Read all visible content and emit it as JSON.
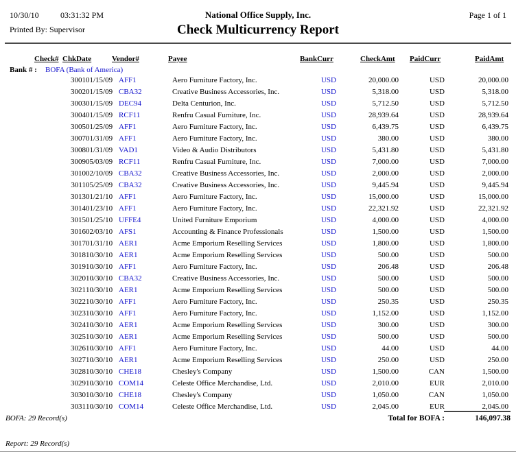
{
  "page_header": {
    "date": "10/30/10",
    "time": "03:31:32 PM",
    "company": "National Office Supply, Inc.",
    "page": "Page 1 of 1",
    "printed_by": "Printed By: Supervisor",
    "report_title": "Check Multicurrency Report"
  },
  "table": {
    "columns": [
      "Check#",
      "ChkDate",
      "Vendor#",
      "Payee",
      "BankCurr",
      "CheckAmt",
      "PaidCurr",
      "PaidAmt"
    ],
    "bank_label": "Bank # :",
    "bank_value": "BOFA (Bank of America)",
    "rows": [
      {
        "check_no": "3001",
        "chk_date": "01/15/09",
        "vendor": "AFF1",
        "payee": "Aero Furniture Factory, Inc.",
        "bank_curr": "USD",
        "check_amt": "20,000.00",
        "paid_curr": "USD",
        "paid_amt": "20,000.00"
      },
      {
        "check_no": "3002",
        "chk_date": "01/15/09",
        "vendor": "CBA32",
        "payee": "Creative Business Accessories, Inc.",
        "bank_curr": "USD",
        "check_amt": "5,318.00",
        "paid_curr": "USD",
        "paid_amt": "5,318.00"
      },
      {
        "check_no": "3003",
        "chk_date": "01/15/09",
        "vendor": "DEC94",
        "payee": "Delta Centurion, Inc.",
        "bank_curr": "USD",
        "check_amt": "5,712.50",
        "paid_curr": "USD",
        "paid_amt": "5,712.50"
      },
      {
        "check_no": "3004",
        "chk_date": "01/15/09",
        "vendor": "RCF11",
        "payee": "Renfru Casual Furniture, Inc.",
        "bank_curr": "USD",
        "check_amt": "28,939.64",
        "paid_curr": "USD",
        "paid_amt": "28,939.64"
      },
      {
        "check_no": "3005",
        "chk_date": "01/25/09",
        "vendor": "AFF1",
        "payee": "Aero Furniture Factory, Inc.",
        "bank_curr": "USD",
        "check_amt": "6,439.75",
        "paid_curr": "USD",
        "paid_amt": "6,439.75"
      },
      {
        "check_no": "3007",
        "chk_date": "01/31/09",
        "vendor": "AFF1",
        "payee": "Aero Furniture Factory, Inc.",
        "bank_curr": "USD",
        "check_amt": "380.00",
        "paid_curr": "USD",
        "paid_amt": "380.00"
      },
      {
        "check_no": "3008",
        "chk_date": "01/31/09",
        "vendor": "VAD1",
        "payee": "Video & Audio Distributors",
        "bank_curr": "USD",
        "check_amt": "5,431.80",
        "paid_curr": "USD",
        "paid_amt": "5,431.80"
      },
      {
        "check_no": "3009",
        "chk_date": "05/03/09",
        "vendor": "RCF11",
        "payee": "Renfru Casual Furniture, Inc.",
        "bank_curr": "USD",
        "check_amt": "7,000.00",
        "paid_curr": "USD",
        "paid_amt": "7,000.00"
      },
      {
        "check_no": "3010",
        "chk_date": "02/10/09",
        "vendor": "CBA32",
        "payee": "Creative Business Accessories, Inc.",
        "bank_curr": "USD",
        "check_amt": "2,000.00",
        "paid_curr": "USD",
        "paid_amt": "2,000.00"
      },
      {
        "check_no": "3011",
        "chk_date": "05/25/09",
        "vendor": "CBA32",
        "payee": "Creative Business Accessories, Inc.",
        "bank_curr": "USD",
        "check_amt": "9,445.94",
        "paid_curr": "USD",
        "paid_amt": "9,445.94"
      },
      {
        "check_no": "3013",
        "chk_date": "01/21/10",
        "vendor": "AFF1",
        "payee": "Aero Furniture Factory, Inc.",
        "bank_curr": "USD",
        "check_amt": "15,000.00",
        "paid_curr": "USD",
        "paid_amt": "15,000.00"
      },
      {
        "check_no": "3014",
        "chk_date": "01/23/10",
        "vendor": "AFF1",
        "payee": "Aero Furniture Factory, Inc.",
        "bank_curr": "USD",
        "check_amt": "22,321.92",
        "paid_curr": "USD",
        "paid_amt": "22,321.92"
      },
      {
        "check_no": "3015",
        "chk_date": "01/25/10",
        "vendor": "UFFE4",
        "payee": "United Furniture Emporium",
        "bank_curr": "USD",
        "check_amt": "4,000.00",
        "paid_curr": "USD",
        "paid_amt": "4,000.00"
      },
      {
        "check_no": "3016",
        "chk_date": "02/03/10",
        "vendor": "AFS1",
        "payee": "Accounting & Finance Professionals",
        "bank_curr": "USD",
        "check_amt": "1,500.00",
        "paid_curr": "USD",
        "paid_amt": "1,500.00"
      },
      {
        "check_no": "3017",
        "chk_date": "01/31/10",
        "vendor": "AER1",
        "payee": "Acme Emporium Reselling Services",
        "bank_curr": "USD",
        "check_amt": "1,800.00",
        "paid_curr": "USD",
        "paid_amt": "1,800.00"
      },
      {
        "check_no": "3018",
        "chk_date": "10/30/10",
        "vendor": "AER1",
        "payee": "Acme Emporium Reselling Services",
        "bank_curr": "USD",
        "check_amt": "500.00",
        "paid_curr": "USD",
        "paid_amt": "500.00"
      },
      {
        "check_no": "3019",
        "chk_date": "10/30/10",
        "vendor": "AFF1",
        "payee": "Aero Furniture Factory, Inc.",
        "bank_curr": "USD",
        "check_amt": "206.48",
        "paid_curr": "USD",
        "paid_amt": "206.48"
      },
      {
        "check_no": "3020",
        "chk_date": "10/30/10",
        "vendor": "CBA32",
        "payee": "Creative Business Accessories, Inc.",
        "bank_curr": "USD",
        "check_amt": "500.00",
        "paid_curr": "USD",
        "paid_amt": "500.00"
      },
      {
        "check_no": "3021",
        "chk_date": "10/30/10",
        "vendor": "AER1",
        "payee": "Acme Emporium Reselling Services",
        "bank_curr": "USD",
        "check_amt": "500.00",
        "paid_curr": "USD",
        "paid_amt": "500.00"
      },
      {
        "check_no": "3022",
        "chk_date": "10/30/10",
        "vendor": "AFF1",
        "payee": "Aero Furniture Factory, Inc.",
        "bank_curr": "USD",
        "check_amt": "250.35",
        "paid_curr": "USD",
        "paid_amt": "250.35"
      },
      {
        "check_no": "3023",
        "chk_date": "10/30/10",
        "vendor": "AFF1",
        "payee": "Aero Furniture Factory, Inc.",
        "bank_curr": "USD",
        "check_amt": "1,152.00",
        "paid_curr": "USD",
        "paid_amt": "1,152.00"
      },
      {
        "check_no": "3024",
        "chk_date": "10/30/10",
        "vendor": "AER1",
        "payee": "Acme Emporium Reselling Services",
        "bank_curr": "USD",
        "check_amt": "300.00",
        "paid_curr": "USD",
        "paid_amt": "300.00"
      },
      {
        "check_no": "3025",
        "chk_date": "10/30/10",
        "vendor": "AER1",
        "payee": "Acme Emporium Reselling Services",
        "bank_curr": "USD",
        "check_amt": "500.00",
        "paid_curr": "USD",
        "paid_amt": "500.00"
      },
      {
        "check_no": "3026",
        "chk_date": "10/30/10",
        "vendor": "AFF1",
        "payee": "Aero Furniture Factory, Inc.",
        "bank_curr": "USD",
        "check_amt": "44.00",
        "paid_curr": "USD",
        "paid_amt": "44.00"
      },
      {
        "check_no": "3027",
        "chk_date": "10/30/10",
        "vendor": "AER1",
        "payee": "Acme Emporium Reselling Services",
        "bank_curr": "USD",
        "check_amt": "250.00",
        "paid_curr": "USD",
        "paid_amt": "250.00"
      },
      {
        "check_no": "3028",
        "chk_date": "10/30/10",
        "vendor": "CHE18",
        "payee": "Chesley's Company",
        "bank_curr": "USD",
        "check_amt": "1,500.00",
        "paid_curr": "CAN",
        "paid_amt": "1,500.00"
      },
      {
        "check_no": "3029",
        "chk_date": "10/30/10",
        "vendor": "COM14",
        "payee": "Celeste Office Merchandise, Ltd.",
        "bank_curr": "USD",
        "check_amt": "2,010.00",
        "paid_curr": "EUR",
        "paid_amt": "2,010.00"
      },
      {
        "check_no": "3030",
        "chk_date": "10/30/10",
        "vendor": "CHE18",
        "payee": "Chesley's Company",
        "bank_curr": "USD",
        "check_amt": "1,050.00",
        "paid_curr": "CAN",
        "paid_amt": "1,050.00"
      },
      {
        "check_no": "3031",
        "chk_date": "10/30/10",
        "vendor": "COM14",
        "payee": "Celeste Office Merchandise, Ltd.",
        "bank_curr": "USD",
        "check_amt": "2,045.00",
        "paid_curr": "EUR",
        "paid_amt": "2,045.00"
      }
    ]
  },
  "footer": {
    "bank_record_count": "BOFA: 29 Record(s)",
    "total_label": "Total for BOFA :",
    "total_amount": "146,097.38",
    "report_record_count": "Report: 29 Record(s)"
  },
  "colors": {
    "link_blue": "#1111cc",
    "text": "#000000"
  }
}
